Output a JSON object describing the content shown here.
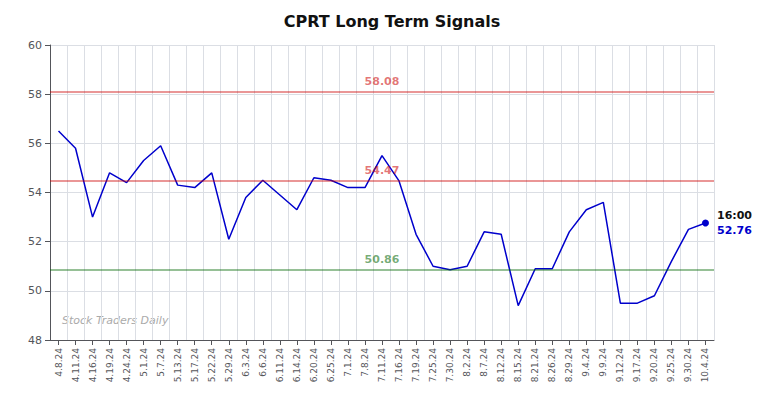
{
  "chart_data": {
    "type": "line",
    "title": "CPRT Long Term Signals",
    "categories": [
      "4.8.24",
      "4.11.24",
      "4.16.24",
      "4.19.24",
      "4.24.24",
      "5.1.24",
      "5.7.24",
      "5.13.24",
      "5.17.24",
      "5.22.24",
      "5.29.24",
      "6.3.24",
      "6.6.24",
      "6.11.24",
      "6.14.24",
      "6.20.24",
      "6.25.24",
      "7.1.24",
      "7.8.24",
      "7.11.24",
      "7.16.24",
      "7.19.24",
      "7.25.24",
      "7.30.24",
      "8.2.24",
      "8.7.24",
      "8.12.24",
      "8.15.24",
      "8.21.24",
      "8.26.24",
      "8.29.24",
      "9.4.24",
      "9.9.24",
      "9.12.24",
      "9.17.24",
      "9.20.24",
      "9.25.24",
      "9.30.24",
      "10.4.24"
    ],
    "values": [
      56.5,
      55.8,
      53.0,
      54.8,
      54.4,
      55.3,
      55.9,
      54.3,
      54.2,
      54.8,
      52.1,
      53.8,
      54.5,
      53.9,
      53.3,
      54.6,
      54.5,
      54.2,
      54.2,
      55.5,
      54.47,
      52.3,
      51.0,
      50.86,
      51.0,
      52.4,
      52.3,
      49.4,
      50.9,
      50.9,
      52.4,
      53.3,
      53.6,
      49.5,
      49.5,
      49.8,
      51.2,
      52.5,
      52.76
    ],
    "color": "#0000cc",
    "ylim": [
      48,
      60
    ],
    "yticks": [
      48,
      50,
      52,
      54,
      56,
      58,
      60
    ],
    "grid": true,
    "reference_lines": [
      {
        "value": 58.08,
        "color": "#cc0000"
      },
      {
        "value": 54.47,
        "color": "#cc0000"
      },
      {
        "value": 50.86,
        "color": "#006600"
      }
    ],
    "last_point_label": "16:00",
    "watermark": "Stock Traders Daily"
  }
}
